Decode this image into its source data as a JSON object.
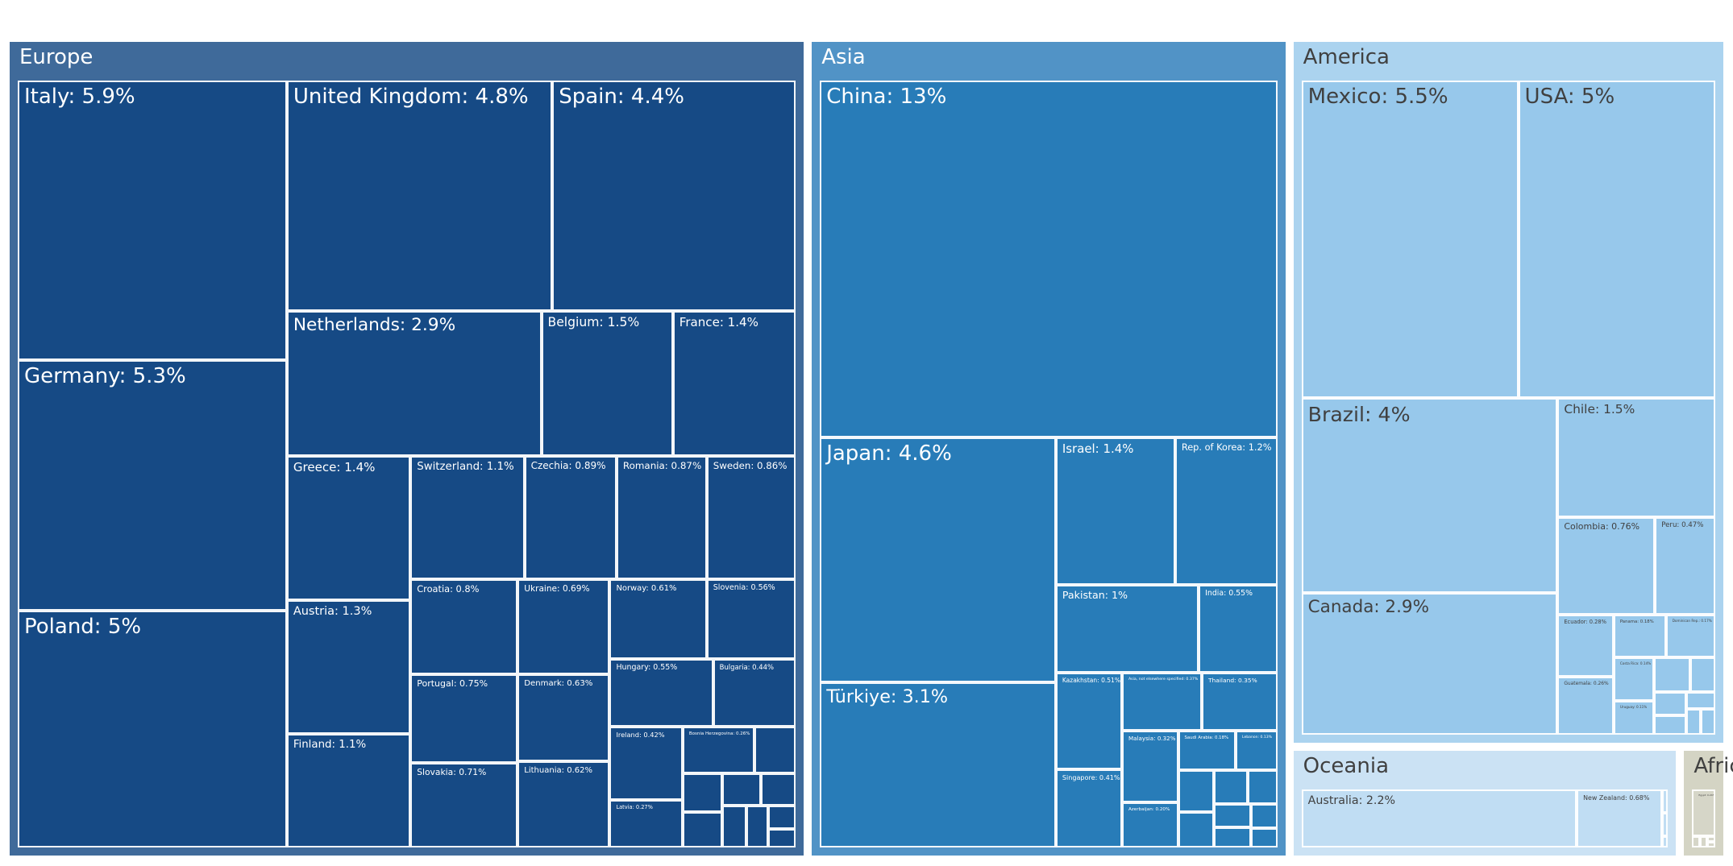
{
  "chart_data": {
    "type": "treemap",
    "unit": "%",
    "groups": [
      {
        "name": "Europe",
        "color": "#3f6a9a",
        "tile_color": "#164a85",
        "text_color": "#ffffff",
        "items": [
          {
            "name": "Italy",
            "value": 5.9,
            "label": "Italy: 5.9%"
          },
          {
            "name": "Germany",
            "value": 5.3,
            "label": "Germany: 5.3%"
          },
          {
            "name": "Poland",
            "value": 5,
            "label": "Poland: 5%"
          },
          {
            "name": "United Kingdom",
            "value": 4.8,
            "label": "United Kingdom: 4.8%"
          },
          {
            "name": "Spain",
            "value": 4.4,
            "label": "Spain: 4.4%"
          },
          {
            "name": "Netherlands",
            "value": 2.9,
            "label": "Netherlands: 2.9%"
          },
          {
            "name": "Belgium",
            "value": 1.5,
            "label": "Belgium: 1.5%"
          },
          {
            "name": "France",
            "value": 1.4,
            "label": "France: 1.4%"
          },
          {
            "name": "Greece",
            "value": 1.4,
            "label": "Greece: 1.4%"
          },
          {
            "name": "Austria",
            "value": 1.3,
            "label": "Austria: 1.3%"
          },
          {
            "name": "Finland",
            "value": 1.1,
            "label": "Finland: 1.1%"
          },
          {
            "name": "Switzerland",
            "value": 1.1,
            "label": "Switzerland: 1.1%"
          },
          {
            "name": "Czechia",
            "value": 0.89,
            "label": "Czechia: 0.89%"
          },
          {
            "name": "Romania",
            "value": 0.87,
            "label": "Romania: 0.87%"
          },
          {
            "name": "Sweden",
            "value": 0.86,
            "label": "Sweden: 0.86%"
          },
          {
            "name": "Croatia",
            "value": 0.8,
            "label": "Croatia: 0.8%"
          },
          {
            "name": "Ukraine",
            "value": 0.69,
            "label": "Ukraine: 0.69%"
          },
          {
            "name": "Norway",
            "value": 0.61,
            "label": "Norway: 0.61%"
          },
          {
            "name": "Slovenia",
            "value": 0.56,
            "label": "Slovenia: 0.56%"
          },
          {
            "name": "Portugal",
            "value": 0.75,
            "label": "Portugal: 0.75%"
          },
          {
            "name": "Denmark",
            "value": 0.63,
            "label": "Denmark: 0.63%"
          },
          {
            "name": "Hungary",
            "value": 0.55,
            "label": "Hungary: 0.55%"
          },
          {
            "name": "Bulgaria",
            "value": 0.44,
            "label": "Bulgaria: 0.44%"
          },
          {
            "name": "Slovakia",
            "value": 0.71,
            "label": "Slovakia: 0.71%"
          },
          {
            "name": "Lithuania",
            "value": 0.62,
            "label": "Lithuania: 0.62%"
          },
          {
            "name": "Ireland",
            "value": 0.42,
            "label": "Ireland: 0.42%"
          },
          {
            "name": "Latvia",
            "value": 0.27,
            "label": "Latvia: 0.27%"
          },
          {
            "name": "Bosnia Herzegovina",
            "value": 0.26,
            "label": "Bosnia Herzegovina: 0.26%"
          },
          {
            "name": "",
            "value": 0.15,
            "label": ""
          },
          {
            "name": "",
            "value": 0.12,
            "label": ""
          },
          {
            "name": "",
            "value": 0.11,
            "label": ""
          },
          {
            "name": "",
            "value": 0.1,
            "label": ""
          },
          {
            "name": "",
            "value": 0.09,
            "label": ""
          },
          {
            "name": "",
            "value": 0.08,
            "label": ""
          },
          {
            "name": "",
            "value": 0.07,
            "label": ""
          },
          {
            "name": "",
            "value": 0.05,
            "label": ""
          },
          {
            "name": "",
            "value": 0.04,
            "label": ""
          }
        ]
      },
      {
        "name": "Asia",
        "color": "#5193c6",
        "tile_color": "#287cb8",
        "text_color": "#ffffff",
        "items": [
          {
            "name": "China",
            "value": 13,
            "label": "China: 13%"
          },
          {
            "name": "Japan",
            "value": 4.6,
            "label": "Japan: 4.6%"
          },
          {
            "name": "Türkiye",
            "value": 3.1,
            "label": "Türkiye: 3.1%"
          },
          {
            "name": "Israel",
            "value": 1.4,
            "label": "Israel: 1.4%"
          },
          {
            "name": "Rep. of Korea",
            "value": 1.2,
            "label": "Rep. of Korea: 1.2%"
          },
          {
            "name": "Pakistan",
            "value": 1,
            "label": "Pakistan: 1%"
          },
          {
            "name": "India",
            "value": 0.55,
            "label": "India: 0.55%"
          },
          {
            "name": "Kazakhstan",
            "value": 0.51,
            "label": "Kazakhstan: 0.51%"
          },
          {
            "name": "Thailand",
            "value": 0.35,
            "label": "Thailand: 0.35%"
          },
          {
            "name": "Malaysia",
            "value": 0.32,
            "label": "Malaysia: 0.32%"
          },
          {
            "name": "Singapore",
            "value": 0.41,
            "label": "Singapore: 0.41%"
          },
          {
            "name": "Asia, not elsewhere specified",
            "value": 0.37,
            "label": "Asia, not elsewhere specified: 0.37%"
          },
          {
            "name": "Azerbaijan",
            "value": 0.2,
            "label": "Azerbaijan: 0.20%"
          },
          {
            "name": "Saudi Arabia",
            "value": 0.18,
            "label": "Saudi Arabia: 0.18%"
          },
          {
            "name": "Lebanon",
            "value": 0.13,
            "label": "Lebanon: 0.13%"
          },
          {
            "name": "",
            "value": 0.12,
            "label": ""
          },
          {
            "name": "",
            "value": 0.1,
            "label": ""
          },
          {
            "name": "",
            "value": 0.09,
            "label": ""
          },
          {
            "name": "",
            "value": 0.08,
            "label": ""
          },
          {
            "name": "",
            "value": 0.07,
            "label": ""
          },
          {
            "name": "",
            "value": 0.06,
            "label": ""
          },
          {
            "name": "",
            "value": 0.05,
            "label": ""
          },
          {
            "name": "",
            "value": 0.04,
            "label": ""
          }
        ]
      },
      {
        "name": "America",
        "color": "#abd3ef",
        "tile_color": "#97c8eb",
        "text_color": "#404040",
        "items": [
          {
            "name": "Mexico",
            "value": 5.5,
            "label": "Mexico: 5.5%"
          },
          {
            "name": "USA",
            "value": 5,
            "label": "USA: 5%"
          },
          {
            "name": "Brazil",
            "value": 4,
            "label": "Brazil: 4%"
          },
          {
            "name": "Canada",
            "value": 2.9,
            "label": "Canada: 2.9%"
          },
          {
            "name": "Chile",
            "value": 1.5,
            "label": "Chile: 1.5%"
          },
          {
            "name": "Colombia",
            "value": 0.76,
            "label": "Colombia: 0.76%"
          },
          {
            "name": "Peru",
            "value": 0.47,
            "label": "Peru: 0.47%"
          },
          {
            "name": "Ecuador",
            "value": 0.28,
            "label": "Ecuador: 0.28%"
          },
          {
            "name": "Guatemala",
            "value": 0.26,
            "label": "Guatemala: 0.26%"
          },
          {
            "name": "Panama",
            "value": 0.18,
            "label": "Panama: 0.18%"
          },
          {
            "name": "Dominican Rep.",
            "value": 0.17,
            "label": "Dominican Rep.: 0.17%"
          },
          {
            "name": "Costa Rica",
            "value": 0.14,
            "label": "Costa Rica: 0.14%"
          },
          {
            "name": "Uruguay",
            "value": 0.11,
            "label": "Uruguay: 0.11%"
          },
          {
            "name": "",
            "value": 0.1,
            "label": ""
          },
          {
            "name": "",
            "value": 0.07,
            "label": ""
          },
          {
            "name": "",
            "value": 0.06,
            "label": ""
          },
          {
            "name": "",
            "value": 0.05,
            "label": ""
          },
          {
            "name": "",
            "value": 0.04,
            "label": ""
          },
          {
            "name": "",
            "value": 0.03,
            "label": ""
          },
          {
            "name": "",
            "value": 0.03,
            "label": ""
          }
        ]
      },
      {
        "name": "Oceania",
        "color": "#cbe2f4",
        "tile_color": "#c0ddf3",
        "text_color": "#404040",
        "items": [
          {
            "name": "Australia",
            "value": 2.2,
            "label": "Australia: 2.2%"
          },
          {
            "name": "New Zealand",
            "value": 0.68,
            "label": "New Zealand: 0.68%"
          },
          {
            "name": "",
            "value": 0.02,
            "label": ""
          },
          {
            "name": "",
            "value": 0.02,
            "label": ""
          },
          {
            "name": "",
            "value": 0.01,
            "label": ""
          }
        ]
      },
      {
        "name": "Africa",
        "color": "#d4d4c4",
        "tile_color": "#d6d6c8",
        "text_color": "#404040",
        "items": [
          {
            "name": "Egypt",
            "value": 0.24,
            "label": "Egypt: 0.24%"
          },
          {
            "name": "",
            "value": 0.02,
            "label": ""
          },
          {
            "name": "",
            "value": 0.02,
            "label": ""
          },
          {
            "name": "",
            "value": 0.01,
            "label": ""
          },
          {
            "name": "",
            "value": 0.01,
            "label": ""
          }
        ]
      }
    ]
  }
}
